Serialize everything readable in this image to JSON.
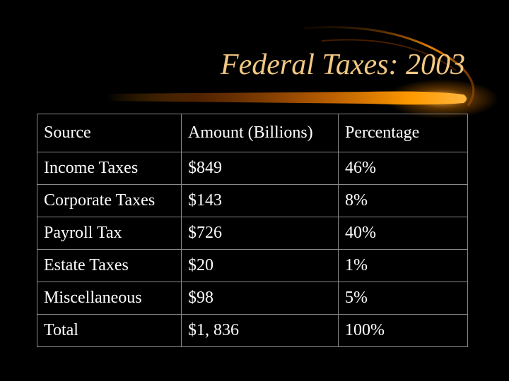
{
  "slide": {
    "title": "Federal Taxes: 2003",
    "accent_color": "#f2c783",
    "swoosh_color": "#ff9a00"
  },
  "table": {
    "headers": [
      "Source",
      "Amount (Billions)",
      "Percentage"
    ],
    "rows": [
      [
        "Income Taxes",
        "$849",
        "46%"
      ],
      [
        "Corporate Taxes",
        "$143",
        "8%"
      ],
      [
        "Payroll Tax",
        "$726",
        "40%"
      ],
      [
        "Estate Taxes",
        "$20",
        "1%"
      ],
      [
        "Miscellaneous",
        "$98",
        "5%"
      ],
      [
        "Total",
        "$1, 836",
        "100%"
      ]
    ]
  }
}
